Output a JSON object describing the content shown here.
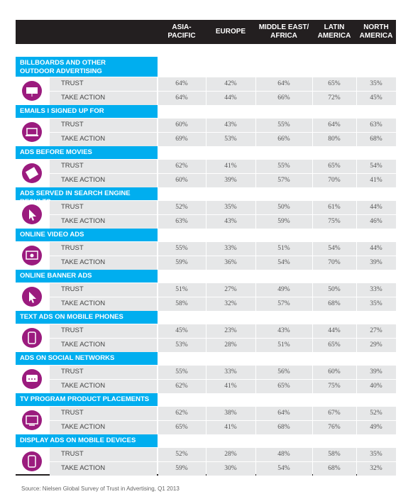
{
  "header": {
    "columns": [
      "ASIA-\nPACIFIC",
      "EUROPE",
      "MIDDLE EAST/\nAFRICA",
      "LATIN\nAMERICA",
      "NORTH\nAMERICA"
    ]
  },
  "sections": [
    {
      "label": "BILLBOARDS AND OTHER\nOUTDOOR ADVERTISING",
      "rows": [
        {
          "label": "TRUST",
          "values": [
            "64%",
            "42%",
            "64%",
            "65%",
            "35%"
          ]
        },
        {
          "label": "TAKE ACTION",
          "values": [
            "64%",
            "44%",
            "66%",
            "72%",
            "45%"
          ]
        }
      ]
    },
    {
      "label": "EMAILS I SIGNED UP FOR",
      "rows": [
        {
          "label": "TRUST",
          "values": [
            "60%",
            "43%",
            "55%",
            "64%",
            "63%"
          ]
        },
        {
          "label": "TAKE ACTION",
          "values": [
            "69%",
            "53%",
            "66%",
            "80%",
            "68%"
          ]
        }
      ]
    },
    {
      "label": "ADS BEFORE MOVIES",
      "rows": [
        {
          "label": "TRUST",
          "values": [
            "62%",
            "41%",
            "55%",
            "65%",
            "54%"
          ]
        },
        {
          "label": "TAKE ACTION",
          "values": [
            "60%",
            "39%",
            "57%",
            "70%",
            "41%"
          ]
        }
      ]
    },
    {
      "label": "ADS SERVED IN SEARCH ENGINE RESULTS",
      "rows": [
        {
          "label": "TRUST",
          "values": [
            "52%",
            "35%",
            "50%",
            "61%",
            "44%"
          ]
        },
        {
          "label": "TAKE ACTION",
          "values": [
            "63%",
            "43%",
            "59%",
            "75%",
            "46%"
          ]
        }
      ]
    },
    {
      "label": "ONLINE VIDEO ADS",
      "rows": [
        {
          "label": "TRUST",
          "values": [
            "55%",
            "33%",
            "51%",
            "54%",
            "44%"
          ]
        },
        {
          "label": "TAKE ACTION",
          "values": [
            "59%",
            "36%",
            "54%",
            "70%",
            "39%"
          ]
        }
      ]
    },
    {
      "label": "ONLINE BANNER ADS",
      "rows": [
        {
          "label": "TRUST",
          "values": [
            "51%",
            "27%",
            "49%",
            "50%",
            "33%"
          ]
        },
        {
          "label": "TAKE ACTION",
          "values": [
            "58%",
            "32%",
            "57%",
            "68%",
            "35%"
          ]
        }
      ]
    },
    {
      "label": "TEXT ADS ON MOBILE PHONES",
      "rows": [
        {
          "label": "TRUST",
          "values": [
            "45%",
            "23%",
            "43%",
            "44%",
            "27%"
          ]
        },
        {
          "label": "TAKE ACTION",
          "values": [
            "53%",
            "28%",
            "51%",
            "65%",
            "29%"
          ]
        }
      ]
    },
    {
      "label": "ADS ON SOCIAL NETWORKS",
      "rows": [
        {
          "label": "TRUST",
          "values": [
            "55%",
            "33%",
            "56%",
            "60%",
            "39%"
          ]
        },
        {
          "label": "TAKE ACTION",
          "values": [
            "62%",
            "41%",
            "65%",
            "75%",
            "40%"
          ]
        }
      ]
    },
    {
      "label": "TV PROGRAM PRODUCT PLACEMENTS",
      "rows": [
        {
          "label": "TRUST",
          "values": [
            "62%",
            "38%",
            "64%",
            "67%",
            "52%"
          ]
        },
        {
          "label": "TAKE ACTION",
          "values": [
            "65%",
            "41%",
            "68%",
            "76%",
            "49%"
          ]
        }
      ]
    },
    {
      "label": "DISPLAY ADS ON MOBILE DEVICES",
      "rows": [
        {
          "label": "TRUST",
          "values": [
            "52%",
            "28%",
            "48%",
            "58%",
            "35%"
          ]
        },
        {
          "label": "TAKE ACTION",
          "values": [
            "59%",
            "30%",
            "54%",
            "68%",
            "32%"
          ]
        }
      ]
    }
  ],
  "source": "Source: Nielsen Global Survey of Trust in Advertising, Q1 2013"
}
